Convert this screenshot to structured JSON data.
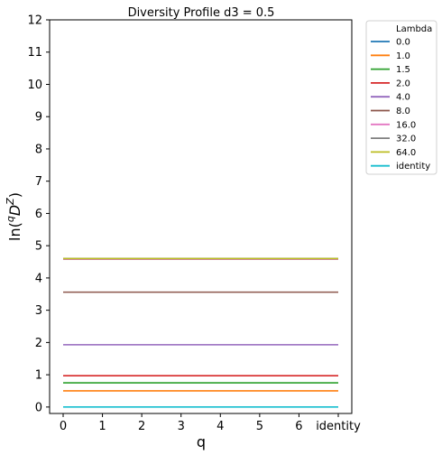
{
  "chart_data": {
    "type": "line",
    "title": "Diversity Profile d3 = 0.5",
    "xlabel": "q",
    "ylabel_prefix": "ln(",
    "ylabel_sup": "q",
    "ylabel_main": "D",
    "ylabel_sub": "Z",
    "ylabel_suffix": ")",
    "x": [
      0,
      1,
      2,
      3,
      4,
      5,
      6,
      7
    ],
    "xticklabels": [
      "0",
      "1",
      "2",
      "3",
      "4",
      "5",
      "6",
      "identity"
    ],
    "yticks": [
      0,
      1,
      2,
      3,
      4,
      5,
      6,
      7,
      8,
      9,
      10,
      11,
      12
    ],
    "yticklabels": [
      "0",
      "1",
      "2",
      "3",
      "4",
      "5",
      "6",
      "7",
      "8",
      "9",
      "10",
      "11",
      "12"
    ],
    "ylim": [
      -0.2,
      12
    ],
    "grid": false,
    "legend_position": "outside-top-right",
    "legend_title": "Lambda",
    "series": [
      {
        "name": "0.0",
        "color": "#1f77b4",
        "values": [
          4.6,
          4.6,
          4.6,
          4.6,
          4.6,
          4.6,
          4.6,
          4.6
        ]
      },
      {
        "name": "1.0",
        "color": "#ff7f0e",
        "values": [
          0.5,
          0.5,
          0.5,
          0.5,
          0.5,
          0.5,
          0.5,
          0.5
        ]
      },
      {
        "name": "1.5",
        "color": "#2ca02c",
        "values": [
          0.75,
          0.75,
          0.75,
          0.75,
          0.75,
          0.75,
          0.75,
          0.75
        ]
      },
      {
        "name": "2.0",
        "color": "#d62728",
        "values": [
          0.97,
          0.97,
          0.97,
          0.97,
          0.97,
          0.97,
          0.97,
          0.97
        ]
      },
      {
        "name": "4.0",
        "color": "#9467bd",
        "values": [
          1.93,
          1.93,
          1.93,
          1.93,
          1.93,
          1.93,
          1.93,
          1.93
        ]
      },
      {
        "name": "8.0",
        "color": "#8c564b",
        "values": [
          3.56,
          3.56,
          3.56,
          3.56,
          3.56,
          3.56,
          3.56,
          3.56
        ]
      },
      {
        "name": "16.0",
        "color": "#e377c2",
        "values": [
          4.58,
          4.58,
          4.58,
          4.58,
          4.58,
          4.58,
          4.58,
          4.58
        ]
      },
      {
        "name": "32.0",
        "color": "#7f7f7f",
        "values": [
          4.6,
          4.6,
          4.6,
          4.6,
          4.6,
          4.6,
          4.6,
          4.6
        ]
      },
      {
        "name": "64.0",
        "color": "#bcbd22",
        "values": [
          4.6,
          4.6,
          4.6,
          4.6,
          4.6,
          4.6,
          4.6,
          4.6
        ]
      },
      {
        "name": "identity",
        "color": "#17becf",
        "values": [
          0.0,
          0.0,
          0.0,
          0.0,
          0.0,
          0.0,
          0.0,
          0.0
        ]
      }
    ]
  }
}
